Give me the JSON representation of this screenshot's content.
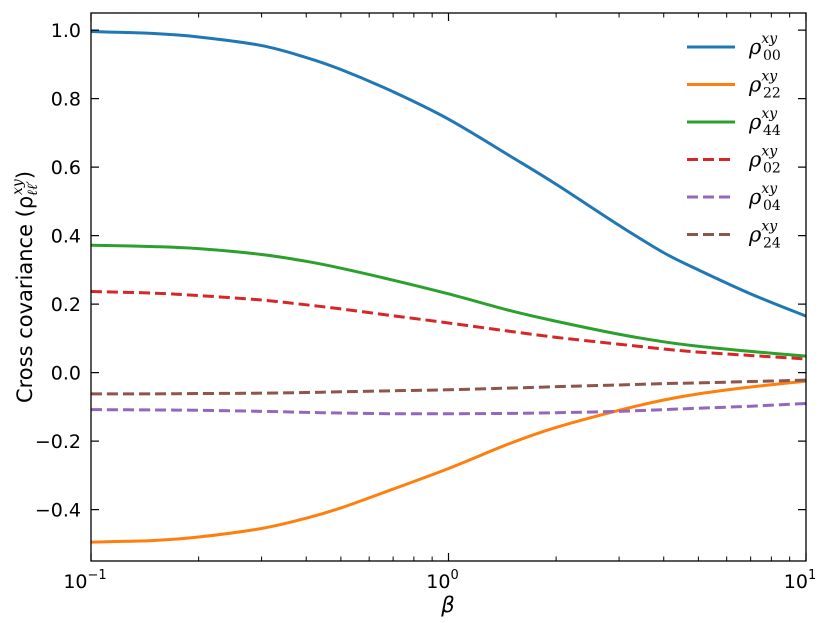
{
  "chart_data": {
    "type": "line",
    "xscale": "log",
    "xlabel": "β",
    "ylabel": "Cross covariance (ρ",
    "ylabel_sub": "ℓℓ′",
    "ylabel_sup": "xy",
    "ylabel_close": ")",
    "xlim": [
      0.1,
      10
    ],
    "ylim": [
      -0.55,
      1.05
    ],
    "grid": false,
    "legend_position": "top-right",
    "x_ticks": [
      {
        "value": 0.1,
        "base": "10",
        "exp": "−1"
      },
      {
        "value": 1,
        "base": "10",
        "exp": "0"
      },
      {
        "value": 10,
        "base": "10",
        "exp": "1"
      }
    ],
    "y_ticks": [
      {
        "value": -0.4,
        "label": "−0.4"
      },
      {
        "value": -0.2,
        "label": "−0.2"
      },
      {
        "value": 0.0,
        "label": "0.0"
      },
      {
        "value": 0.2,
        "label": "0.2"
      },
      {
        "value": 0.4,
        "label": "0.4"
      },
      {
        "value": 0.6,
        "label": "0.6"
      },
      {
        "value": 0.8,
        "label": "0.8"
      },
      {
        "value": 1.0,
        "label": "1.0"
      }
    ],
    "x": [
      0.1,
      0.15,
      0.2,
      0.3,
      0.4,
      0.5,
      0.7,
      1.0,
      1.5,
      2.0,
      3.0,
      4.0,
      5.0,
      7.0,
      10.0
    ],
    "series": [
      {
        "name": "ρ",
        "sup": "xy",
        "sub": "00",
        "color": "#1f77b4",
        "dash": "solid",
        "values": [
          0.996,
          0.99,
          0.98,
          0.955,
          0.92,
          0.885,
          0.82,
          0.74,
          0.63,
          0.55,
          0.43,
          0.35,
          0.3,
          0.23,
          0.165
        ]
      },
      {
        "name": "ρ",
        "sup": "xy",
        "sub": "22",
        "color": "#ff7f0e",
        "dash": "solid",
        "values": [
          -0.495,
          -0.49,
          -0.48,
          -0.455,
          -0.425,
          -0.395,
          -0.34,
          -0.28,
          -0.205,
          -0.16,
          -0.11,
          -0.08,
          -0.062,
          -0.042,
          -0.025
        ]
      },
      {
        "name": "ρ",
        "sup": "xy",
        "sub": "44",
        "color": "#2ca02c",
        "dash": "solid",
        "values": [
          0.372,
          0.368,
          0.362,
          0.345,
          0.325,
          0.305,
          0.27,
          0.23,
          0.18,
          0.15,
          0.112,
          0.09,
          0.077,
          0.062,
          0.048
        ]
      },
      {
        "name": "ρ",
        "sup": "xy",
        "sub": "02",
        "color": "#d62728",
        "dash": "dashed",
        "values": [
          0.237,
          0.232,
          0.225,
          0.212,
          0.198,
          0.186,
          0.166,
          0.145,
          0.12,
          0.103,
          0.083,
          0.069,
          0.06,
          0.05,
          0.04
        ]
      },
      {
        "name": "ρ",
        "sup": "xy",
        "sub": "04",
        "color": "#9467bd",
        "dash": "dashed",
        "values": [
          -0.108,
          -0.109,
          -0.11,
          -0.113,
          -0.116,
          -0.118,
          -0.12,
          -0.12,
          -0.119,
          -0.117,
          -0.113,
          -0.108,
          -0.104,
          -0.098,
          -0.09
        ]
      },
      {
        "name": "ρ",
        "sup": "xy",
        "sub": "24",
        "color": "#8c564b",
        "dash": "dashed",
        "values": [
          -0.062,
          -0.062,
          -0.061,
          -0.06,
          -0.058,
          -0.056,
          -0.053,
          -0.05,
          -0.045,
          -0.041,
          -0.036,
          -0.032,
          -0.03,
          -0.026,
          -0.022
        ]
      }
    ]
  }
}
